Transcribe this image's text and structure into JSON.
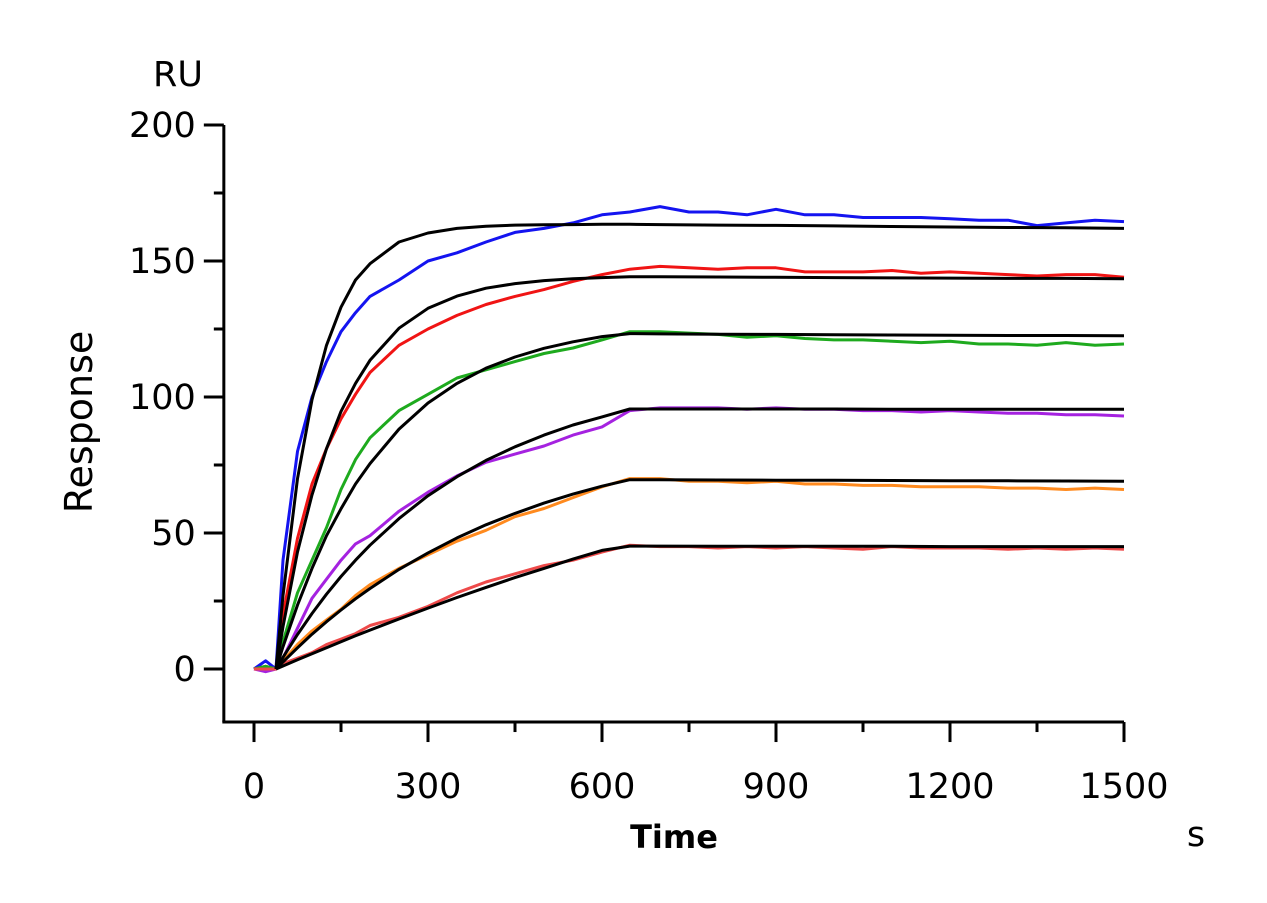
{
  "chart_data": {
    "type": "line",
    "title": "",
    "xlabel": "Time",
    "ylabel": "Response",
    "x_unit": "s",
    "y_unit": "RU",
    "xlim": [
      -52,
      1500
    ],
    "ylim": [
      -19.5,
      200
    ],
    "x_ticks": [
      0,
      300,
      600,
      900,
      1200,
      1500
    ],
    "x_tick_labels": [
      "0",
      "300",
      "600",
      "900",
      "1200",
      "1500"
    ],
    "x_minor_ticks": [
      150,
      450,
      750,
      1050,
      1350
    ],
    "y_ticks": [
      0,
      50,
      100,
      150,
      200
    ],
    "y_tick_labels": [
      "0",
      "50",
      "100",
      "150",
      "200"
    ],
    "y_minor_ticks": [
      25,
      75,
      125,
      175
    ],
    "grid": false,
    "legend": "none",
    "observed_x": [
      0,
      20,
      38,
      50,
      75,
      100,
      125,
      150,
      175,
      200,
      250,
      300,
      350,
      400,
      450,
      500,
      550,
      600,
      648,
      700,
      750,
      800,
      850,
      900,
      950,
      1000,
      1050,
      1100,
      1150,
      1200,
      1250,
      1300,
      1350,
      1400,
      1450,
      1500
    ],
    "observed_series": [
      {
        "color": "#1414f0",
        "values": [
          0,
          3,
          0,
          40,
          80,
          100,
          113,
          124,
          131,
          137,
          143,
          150,
          153,
          157,
          160.5,
          162,
          164,
          167,
          168,
          170,
          168,
          168,
          167,
          169,
          167,
          167,
          166,
          166,
          166,
          165.5,
          165,
          165,
          163,
          164,
          165,
          164.5
        ]
      },
      {
        "color": "#f01414",
        "values": [
          0,
          1,
          0,
          20,
          48,
          68,
          81,
          92,
          101,
          109,
          119,
          125,
          130,
          134,
          137,
          139.5,
          142.5,
          145,
          147,
          148,
          147.5,
          147,
          147.5,
          147.5,
          146,
          146,
          146,
          146.5,
          145.5,
          146,
          145.5,
          145,
          144.5,
          145,
          145,
          144
        ]
      },
      {
        "color": "#1eaa1e",
        "values": [
          0,
          1,
          0,
          10,
          28,
          40,
          52,
          66,
          77,
          85,
          95,
          101,
          107,
          110,
          113,
          116,
          118,
          121,
          124,
          124,
          123.5,
          123,
          122,
          122.5,
          121.5,
          121,
          121,
          120.5,
          120,
          120.5,
          119.5,
          119.5,
          119,
          120,
          119,
          119.5
        ]
      },
      {
        "color": "#a522e0",
        "values": [
          0,
          -1,
          0,
          4,
          15,
          26,
          33,
          40,
          46,
          49,
          58,
          65,
          71,
          76,
          79,
          82,
          86,
          89,
          95,
          96,
          96,
          96,
          95.5,
          96,
          95.5,
          95.5,
          95,
          95,
          94.5,
          95,
          94.5,
          94,
          94,
          93.5,
          93.5,
          93
        ]
      },
      {
        "color": "#ff8a1e",
        "values": [
          0,
          0,
          0,
          3,
          9,
          14,
          18,
          22,
          27,
          31,
          37,
          42,
          47,
          51,
          56,
          59,
          63,
          67,
          70,
          70,
          69,
          69,
          68.5,
          69,
          68,
          68,
          67.5,
          67.5,
          67,
          67,
          67,
          66.5,
          66.5,
          66,
          66.5,
          66
        ]
      },
      {
        "color": "#ee4a4a",
        "values": [
          0,
          0,
          0,
          2,
          4,
          6,
          9,
          11,
          13,
          16,
          19,
          23,
          28,
          32,
          35,
          38,
          40,
          43,
          45.5,
          45,
          45,
          44.5,
          45,
          44.5,
          45,
          44.5,
          44,
          45,
          44.5,
          44.5,
          44.5,
          44,
          44.5,
          44,
          44.5,
          44
        ]
      }
    ],
    "fit_x": [
      38,
      50,
      75,
      100,
      125,
      150,
      175,
      200,
      250,
      300,
      350,
      400,
      450,
      500,
      550,
      600,
      648,
      700,
      800,
      900,
      1000,
      1100,
      1200,
      1300,
      1400,
      1500
    ],
    "fit_color": "#000000",
    "fit_series": [
      {
        "values": [
          0,
          27,
          70,
          99,
          119,
          133,
          143,
          149,
          157,
          160.3,
          162,
          162.8,
          163.2,
          163.3,
          163.4,
          163.5,
          163.5,
          163.4,
          163.2,
          163.1,
          162.9,
          162.7,
          162.5,
          162.3,
          162.2,
          162
        ]
      },
      {
        "values": [
          0,
          15.6,
          43,
          64,
          81,
          94.7,
          105,
          113.5,
          125.3,
          132.6,
          137.1,
          140,
          141.7,
          142.8,
          143.5,
          143.9,
          144.2,
          144.2,
          144.1,
          144,
          143.9,
          143.8,
          143.7,
          143.6,
          143.6,
          143.5
        ]
      },
      {
        "values": [
          0,
          8.2,
          23.5,
          37,
          49,
          58.9,
          68,
          75.5,
          88.2,
          97.8,
          105,
          110.6,
          114.7,
          117.9,
          120.3,
          122.2,
          123.3,
          123.2,
          123.1,
          123,
          122.9,
          122.8,
          122.7,
          122.6,
          122.6,
          122.5
        ]
      },
      {
        "values": [
          0,
          4.3,
          12.7,
          20.4,
          27.5,
          34,
          40,
          45.5,
          55.3,
          63.7,
          70.7,
          76.7,
          81.7,
          86,
          89.7,
          92.7,
          95.6,
          95.6,
          95.6,
          95.6,
          95.6,
          95.5,
          95.5,
          95.5,
          95.5,
          95.5
        ]
      },
      {
        "values": [
          0,
          2.6,
          7.8,
          12.8,
          17.4,
          21.7,
          25.8,
          29.6,
          36.6,
          42.7,
          48.2,
          53,
          57.2,
          61,
          64.3,
          67.2,
          69.6,
          69.6,
          69.5,
          69.4,
          69.4,
          69.3,
          69.2,
          69.2,
          69.1,
          69
        ]
      },
      {
        "values": [
          0,
          1.1,
          3.4,
          5.6,
          7.8,
          10,
          12.2,
          14.3,
          18.4,
          22.4,
          26.3,
          30,
          33.6,
          37,
          40.4,
          43.6,
          45.2,
          45.2,
          45.1,
          45.1,
          45.1,
          45.1,
          45,
          45,
          45,
          45
        ]
      }
    ]
  }
}
